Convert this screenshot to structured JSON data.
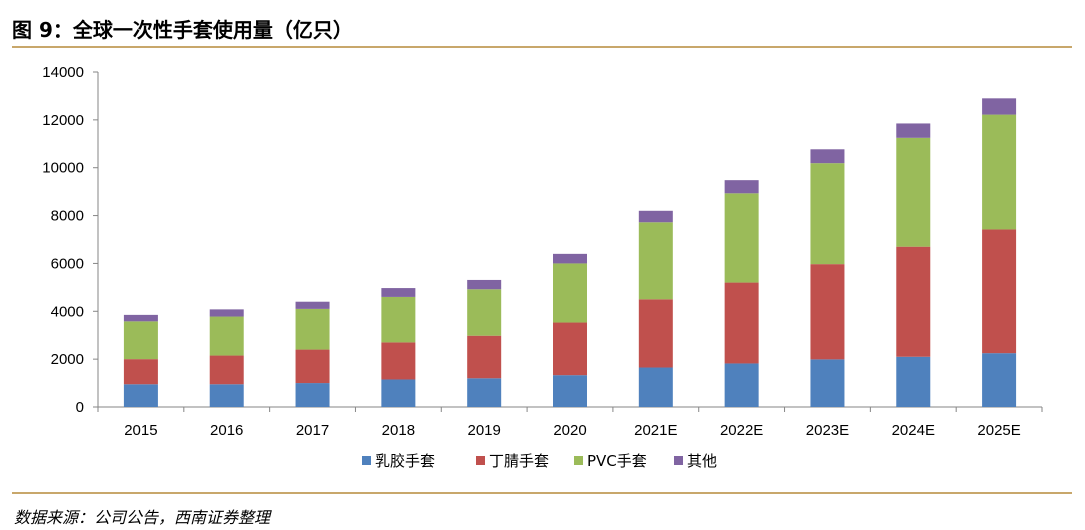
{
  "title": "图 9：全球一次性手套使用量（亿只）",
  "source": "数据来源：公司公告，西南证券整理",
  "colors": {
    "rubber": "#4f81bd",
    "nitrile": "#c0504d",
    "pvc": "#9bbb59",
    "other": "#8064a2",
    "rule": "#c8a76b"
  },
  "chart_data": {
    "type": "bar",
    "stacked": true,
    "title": "全球一次性手套使用量（亿只）",
    "categories": [
      "2015",
      "2016",
      "2017",
      "2018",
      "2019",
      "2020",
      "2021E",
      "2022E",
      "2023E",
      "2024E",
      "2025E"
    ],
    "series": [
      {
        "name": "乳胶手套",
        "color": "#4f81bd",
        "values": [
          950,
          950,
          1000,
          1150,
          1200,
          1330,
          1650,
          1820,
          1990,
          2100,
          2250
        ]
      },
      {
        "name": "丁腈手套",
        "color": "#c0504d",
        "values": [
          1050,
          1200,
          1400,
          1550,
          1780,
          2200,
          2850,
          3380,
          3980,
          4600,
          5170
        ]
      },
      {
        "name": "PVC手套",
        "color": "#9bbb59",
        "values": [
          1580,
          1630,
          1700,
          1900,
          1940,
          2470,
          3220,
          3730,
          4220,
          4550,
          4800
        ]
      },
      {
        "name": "其他",
        "color": "#8064a2",
        "values": [
          270,
          300,
          300,
          370,
          390,
          400,
          480,
          550,
          580,
          600,
          680
        ]
      }
    ],
    "ylim": [
      0,
      14000
    ],
    "yticks": [
      0,
      2000,
      4000,
      6000,
      8000,
      10000,
      12000,
      14000
    ],
    "xlabel": "",
    "ylabel": "",
    "legend_position": "bottom"
  }
}
